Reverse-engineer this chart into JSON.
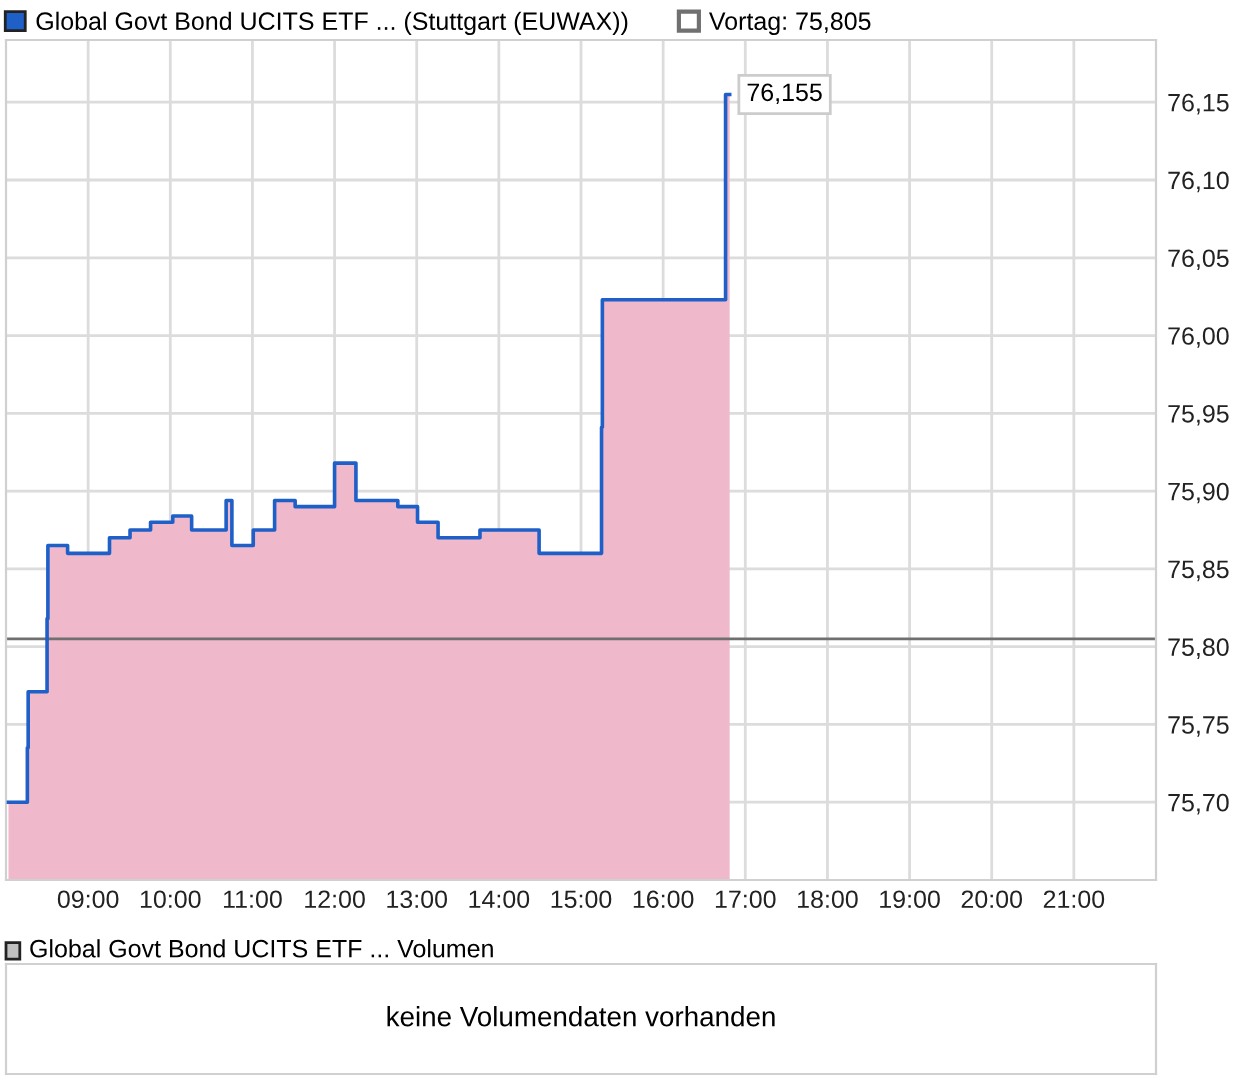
{
  "chart_data": [
    {
      "type": "step",
      "xlim": [
        8,
        22
      ],
      "ylim": [
        75.65,
        76.19
      ],
      "xticks": [
        {
          "value": 9,
          "label": "09:00"
        },
        {
          "value": 10,
          "label": "10:00"
        },
        {
          "value": 11,
          "label": "11:00"
        },
        {
          "value": 12,
          "label": "12:00"
        },
        {
          "value": 13,
          "label": "13:00"
        },
        {
          "value": 14,
          "label": "14:00"
        },
        {
          "value": 15,
          "label": "15:00"
        },
        {
          "value": 16,
          "label": "16:00"
        },
        {
          "value": 17,
          "label": "17:00"
        },
        {
          "value": 18,
          "label": "18:00"
        },
        {
          "value": 19,
          "label": "19:00"
        },
        {
          "value": 20,
          "label": "20:00"
        },
        {
          "value": 21,
          "label": "21:00"
        }
      ],
      "yticks": [
        {
          "value": 75.7,
          "label": "75,70"
        },
        {
          "value": 75.75,
          "label": "75,75"
        },
        {
          "value": 75.8,
          "label": "75,80"
        },
        {
          "value": 75.85,
          "label": "75,85"
        },
        {
          "value": 75.9,
          "label": "75,90"
        },
        {
          "value": 75.95,
          "label": "75,95"
        },
        {
          "value": 76.0,
          "label": "76,00"
        },
        {
          "value": 76.05,
          "label": "76,05"
        },
        {
          "value": 76.1,
          "label": "76,10"
        },
        {
          "value": 76.15,
          "label": "76,15"
        }
      ],
      "x": [
        8.03,
        8.26,
        8.27,
        8.5,
        8.51,
        8.75,
        9.26,
        9.51,
        9.76,
        10.03,
        10.26,
        10.68,
        10.75,
        11.01,
        11.27,
        11.52,
        12.0,
        12.26,
        12.77,
        13.01,
        13.26,
        13.77,
        14.49,
        15.25,
        15.26,
        16.76,
        16.81
      ],
      "series": [
        {
          "type": "area",
          "color": "#f0b9cb",
          "values": [
            75.7,
            75.735,
            75.771,
            75.818,
            75.865,
            75.86,
            75.87,
            75.875,
            75.88,
            75.884,
            75.875,
            75.894,
            75.865,
            75.875,
            75.894,
            75.89,
            75.918,
            75.894,
            75.89,
            75.88,
            75.87,
            75.875,
            75.86,
            75.941,
            76.023,
            76.155,
            76.155
          ]
        },
        {
          "name": "Global Govt Bond UCITS ETF ... (Stuttgart (EUWAX))",
          "color": "#1f5fc8",
          "values": [
            75.7,
            75.735,
            75.771,
            75.818,
            75.865,
            75.86,
            75.87,
            75.875,
            75.88,
            75.884,
            75.875,
            75.894,
            75.865,
            75.875,
            75.894,
            75.89,
            75.918,
            75.894,
            75.89,
            75.88,
            75.87,
            75.875,
            75.86,
            75.941,
            76.023,
            76.155,
            76.155
          ]
        }
      ],
      "ref_lines": [
        {
          "axis": "y",
          "value": 75.805,
          "label": "Vortag: 75,805",
          "color": "#707070"
        }
      ],
      "annotations": [
        {
          "text": "76,155",
          "x": 16.81,
          "y": 76.155
        }
      ],
      "grid": true,
      "legend": "top"
    },
    {
      "type": "other",
      "title": "Global Govt Bond UCITS ETF ... Volumen",
      "annotations": [
        "keine Volumendaten vorhanden"
      ]
    }
  ]
}
